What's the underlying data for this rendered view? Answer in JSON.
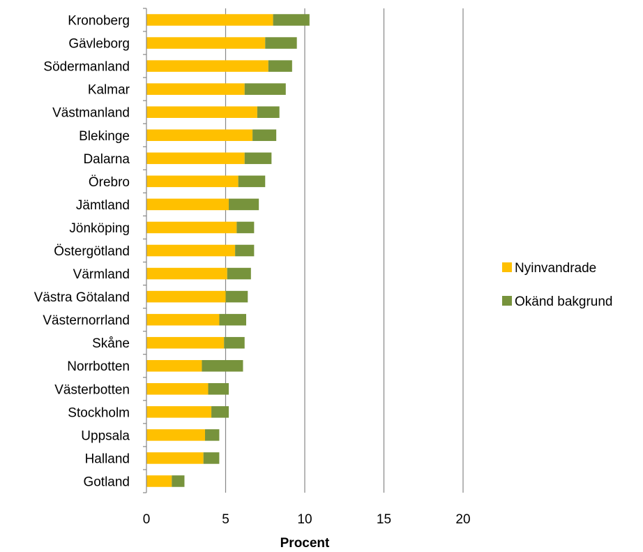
{
  "chart_data": {
    "type": "bar",
    "orientation": "horizontal",
    "stacked": true,
    "categories": [
      "Kronoberg",
      "Gävleborg",
      "Södermanland",
      "Kalmar",
      "Västmanland",
      "Blekinge",
      "Dalarna",
      "Örebro",
      "Jämtland",
      "Jönköping",
      "Östergötland",
      "Värmland",
      "Västra Götaland",
      "Västernorrland",
      "Skåne",
      "Norrbotten",
      "Västerbotten",
      "Stockholm",
      "Uppsala",
      "Halland",
      "Gotland"
    ],
    "series": [
      {
        "name": "Nyinvandrade",
        "color": "#FFC000",
        "values": [
          8.0,
          7.5,
          7.7,
          6.2,
          7.0,
          6.7,
          6.2,
          5.8,
          5.2,
          5.7,
          5.6,
          5.1,
          5.0,
          4.6,
          4.9,
          3.5,
          3.9,
          4.1,
          3.7,
          3.6,
          1.6
        ]
      },
      {
        "name": "Okänd bakgrund",
        "color": "#77933C",
        "values": [
          2.3,
          2.0,
          1.5,
          2.6,
          1.4,
          1.5,
          1.7,
          1.7,
          1.9,
          1.1,
          1.2,
          1.5,
          1.4,
          1.7,
          1.3,
          2.6,
          1.3,
          1.1,
          0.9,
          1.0,
          0.8
        ]
      }
    ],
    "xlabel": "Procent",
    "xlim": [
      0,
      20
    ],
    "xticks": [
      0,
      5,
      10,
      15,
      20
    ],
    "grid": "vertical",
    "legend_position": "right"
  }
}
